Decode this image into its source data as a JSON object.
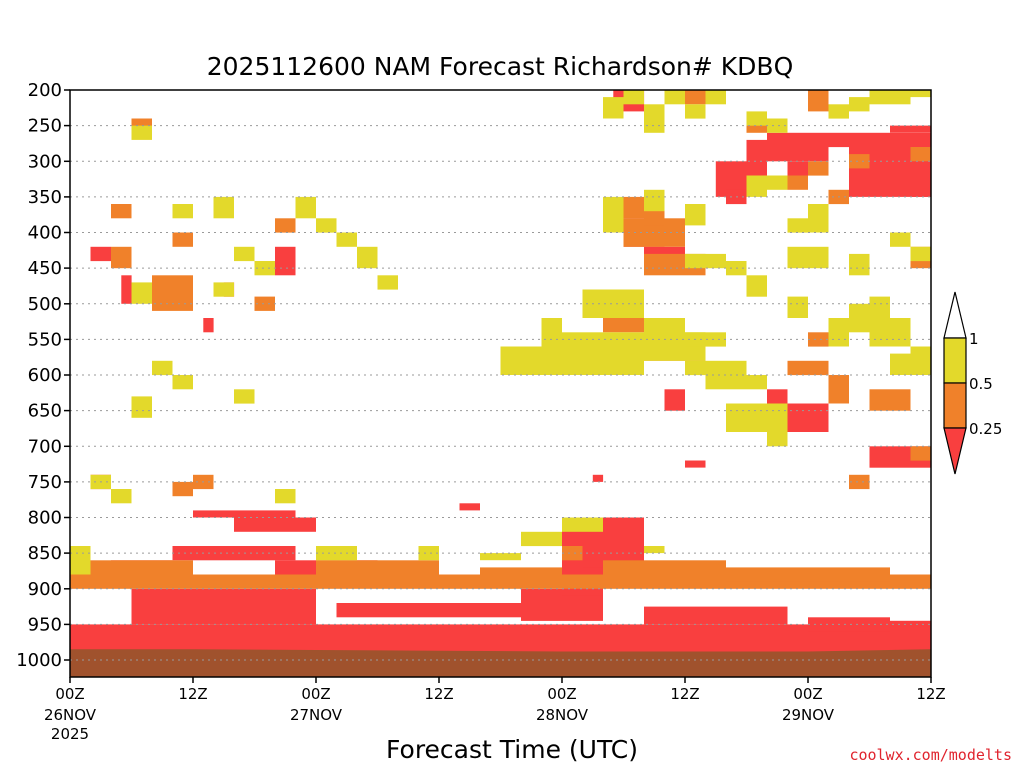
{
  "chart_data": {
    "type": "heatmap",
    "title": "2025112600 NAM Forecast Richardson# KDBQ",
    "xlabel": "Forecast Time (UTC)",
    "ylabel": "",
    "credit": "coolwx.com/modelts",
    "y_axis": {
      "unit": "hPa",
      "range": [
        1000,
        200
      ],
      "ticks": [
        "200",
        "250",
        "300",
        "350",
        "400",
        "450",
        "500",
        "550",
        "600",
        "650",
        "700",
        "750",
        "800",
        "850",
        "900",
        "950",
        "1000"
      ]
    },
    "x_axis": {
      "unit": "forecast hour",
      "range": [
        0,
        84
      ],
      "ticks": [
        {
          "hour": 0,
          "label": "00Z",
          "date": "26NOV",
          "year": "2025"
        },
        {
          "hour": 12,
          "label": "12Z",
          "date": "",
          "year": ""
        },
        {
          "hour": 24,
          "label": "00Z",
          "date": "27NOV",
          "year": ""
        },
        {
          "hour": 36,
          "label": "12Z",
          "date": "",
          "year": ""
        },
        {
          "hour": 48,
          "label": "00Z",
          "date": "28NOV",
          "year": ""
        },
        {
          "hour": 60,
          "label": "12Z",
          "date": "",
          "year": ""
        },
        {
          "hour": 72,
          "label": "00Z",
          "date": "29NOV",
          "year": ""
        },
        {
          "hour": 84,
          "label": "12Z",
          "date": "",
          "year": ""
        }
      ]
    },
    "colorbar": {
      "ticks": [
        "1",
        "0.5",
        "0.25"
      ],
      "classes": [
        {
          "range": ">1",
          "color": "#ffffff"
        },
        {
          "range": "0.5-1",
          "color": "#e3d92b"
        },
        {
          "range": "0.25-0.5",
          "color": "#f0812a"
        },
        {
          "range": "<0.25",
          "color": "#f93f3f"
        }
      ]
    },
    "ground_color": "#a0522d",
    "surface_pressure": [
      [
        0,
        985
      ],
      [
        12,
        985
      ],
      [
        24,
        986
      ],
      [
        36,
        987
      ],
      [
        48,
        988
      ],
      [
        60,
        988
      ],
      [
        72,
        988
      ],
      [
        84,
        985
      ]
    ],
    "regions": [
      {
        "level": "red",
        "cells": [
          [
            0,
            990,
            84,
            950
          ],
          [
            6,
            950,
            24,
            900
          ],
          [
            26,
            940,
            44,
            920
          ],
          [
            44,
            945,
            52,
            900
          ],
          [
            56,
            950,
            70,
            925
          ],
          [
            72,
            960,
            80,
            940
          ],
          [
            80,
            960,
            84,
            945
          ],
          [
            48,
            910,
            52,
            800
          ],
          [
            50,
            870,
            56,
            800
          ]
        ]
      },
      {
        "level": "red",
        "cells": [
          [
            10,
            860,
            22,
            840
          ],
          [
            16,
            820,
            24,
            800
          ],
          [
            12,
            800,
            22,
            790
          ],
          [
            20,
            880,
            30,
            860
          ],
          [
            4,
            870,
            10,
            860
          ],
          [
            2,
            760,
            4,
            740
          ],
          [
            38,
            790,
            40,
            780
          ],
          [
            51,
            750,
            52,
            740
          ],
          [
            63,
            350,
            66,
            300
          ],
          [
            66,
            330,
            68,
            270
          ],
          [
            68,
            300,
            74,
            260
          ],
          [
            74,
            280,
            84,
            260
          ],
          [
            76,
            350,
            84,
            280
          ],
          [
            58,
            650,
            60,
            620
          ],
          [
            68,
            650,
            70,
            620
          ],
          [
            70,
            680,
            74,
            640
          ],
          [
            78,
            730,
            84,
            700
          ],
          [
            80,
            300,
            84,
            280
          ],
          [
            82,
            350,
            84,
            300
          ],
          [
            53,
            230,
            56,
            200
          ],
          [
            54,
            420,
            58,
            380
          ],
          [
            56,
            450,
            60,
            420
          ],
          [
            2,
            440,
            4,
            420
          ],
          [
            5,
            500,
            6,
            460
          ],
          [
            13,
            540,
            14,
            520
          ],
          [
            15,
            490,
            16,
            470
          ],
          [
            20,
            460,
            22,
            420
          ],
          [
            80,
            260,
            84,
            250
          ],
          [
            64,
            360,
            66,
            340
          ],
          [
            70,
            320,
            72,
            300
          ],
          [
            60,
            730,
            62,
            720
          ]
        ]
      },
      {
        "level": "orange",
        "cells": [
          [
            0,
            900,
            84,
            880
          ],
          [
            2,
            880,
            12,
            860
          ],
          [
            24,
            880,
            36,
            860
          ],
          [
            28,
            890,
            36,
            880
          ],
          [
            40,
            880,
            48,
            870
          ],
          [
            48,
            860,
            50,
            840
          ],
          [
            52,
            880,
            64,
            860
          ],
          [
            64,
            890,
            80,
            870
          ],
          [
            4,
            450,
            6,
            420
          ],
          [
            8,
            510,
            12,
            460
          ],
          [
            10,
            420,
            12,
            400
          ],
          [
            6,
            260,
            8,
            240
          ],
          [
            10,
            770,
            12,
            750
          ],
          [
            12,
            760,
            14,
            740
          ],
          [
            18,
            510,
            20,
            490
          ],
          [
            20,
            400,
            22,
            380
          ],
          [
            52,
            540,
            56,
            520
          ],
          [
            56,
            580,
            62,
            560
          ],
          [
            54,
            420,
            60,
            380
          ],
          [
            56,
            460,
            62,
            430
          ],
          [
            62,
            610,
            64,
            590
          ],
          [
            60,
            220,
            62,
            200
          ],
          [
            62,
            210,
            64,
            200
          ],
          [
            54,
            380,
            56,
            350
          ],
          [
            56,
            390,
            58,
            360
          ],
          [
            66,
            260,
            68,
            240
          ],
          [
            70,
            340,
            72,
            320
          ],
          [
            72,
            320,
            74,
            300
          ],
          [
            76,
            310,
            78,
            290
          ],
          [
            70,
            600,
            74,
            580
          ],
          [
            74,
            640,
            76,
            600
          ],
          [
            78,
            650,
            80,
            620
          ],
          [
            80,
            650,
            82,
            620
          ],
          [
            72,
            560,
            74,
            540
          ],
          [
            76,
            760,
            78,
            740
          ],
          [
            82,
            300,
            84,
            280
          ],
          [
            82,
            720,
            84,
            700
          ],
          [
            72,
            230,
            74,
            200
          ],
          [
            4,
            380,
            6,
            360
          ],
          [
            74,
            360,
            76,
            340
          ],
          [
            82,
            450,
            84,
            420
          ]
        ]
      },
      {
        "level": "yellow",
        "cells": [
          [
            0,
            880,
            2,
            840
          ],
          [
            6,
            660,
            8,
            630
          ],
          [
            6,
            270,
            8,
            250
          ],
          [
            8,
            600,
            10,
            580
          ],
          [
            10,
            620,
            12,
            600
          ],
          [
            6,
            500,
            8,
            470
          ],
          [
            10,
            380,
            12,
            360
          ],
          [
            14,
            380,
            16,
            350
          ],
          [
            16,
            440,
            18,
            420
          ],
          [
            18,
            460,
            20,
            440
          ],
          [
            22,
            380,
            24,
            350
          ],
          [
            24,
            400,
            26,
            380
          ],
          [
            26,
            420,
            28,
            400
          ],
          [
            28,
            450,
            30,
            420
          ],
          [
            30,
            480,
            32,
            460
          ],
          [
            46,
            560,
            48,
            520
          ],
          [
            42,
            600,
            56,
            560
          ],
          [
            48,
            580,
            62,
            540
          ],
          [
            50,
            520,
            56,
            480
          ],
          [
            52,
            510,
            54,
            480
          ],
          [
            56,
            560,
            60,
            520
          ],
          [
            60,
            560,
            64,
            540
          ],
          [
            60,
            600,
            66,
            580
          ],
          [
            62,
            620,
            68,
            600
          ],
          [
            64,
            680,
            70,
            640
          ],
          [
            68,
            700,
            70,
            680
          ],
          [
            70,
            520,
            72,
            490
          ],
          [
            52,
            240,
            54,
            210
          ],
          [
            54,
            220,
            56,
            200
          ],
          [
            56,
            260,
            58,
            220
          ],
          [
            58,
            220,
            60,
            200
          ],
          [
            60,
            240,
            62,
            220
          ],
          [
            62,
            220,
            64,
            200
          ],
          [
            52,
            400,
            54,
            350
          ],
          [
            56,
            370,
            58,
            340
          ],
          [
            60,
            390,
            62,
            360
          ],
          [
            60,
            450,
            64,
            430
          ],
          [
            64,
            460,
            66,
            440
          ],
          [
            66,
            490,
            68,
            460
          ],
          [
            66,
            350,
            68,
            320
          ],
          [
            68,
            340,
            70,
            320
          ],
          [
            70,
            400,
            72,
            380
          ],
          [
            72,
            400,
            74,
            360
          ],
          [
            70,
            450,
            74,
            420
          ],
          [
            74,
            560,
            76,
            520
          ],
          [
            76,
            540,
            78,
            500
          ],
          [
            78,
            560,
            80,
            520
          ],
          [
            80,
            600,
            82,
            570
          ],
          [
            82,
            600,
            84,
            560
          ],
          [
            80,
            420,
            82,
            400
          ],
          [
            82,
            440,
            84,
            420
          ],
          [
            76,
            460,
            78,
            430
          ],
          [
            78,
            520,
            80,
            490
          ],
          [
            80,
            560,
            82,
            520
          ],
          [
            74,
            240,
            76,
            220
          ],
          [
            76,
            230,
            78,
            210
          ],
          [
            78,
            220,
            82,
            200
          ],
          [
            82,
            210,
            84,
            200
          ],
          [
            66,
            250,
            68,
            230
          ],
          [
            68,
            260,
            70,
            240
          ],
          [
            16,
            640,
            18,
            620
          ],
          [
            14,
            490,
            16,
            470
          ],
          [
            40,
            860,
            44,
            850
          ],
          [
            56,
            850,
            58,
            840
          ],
          [
            2,
            760,
            4,
            740
          ],
          [
            4,
            780,
            6,
            760
          ],
          [
            20,
            780,
            22,
            760
          ],
          [
            24,
            860,
            28,
            840
          ],
          [
            34,
            860,
            36,
            840
          ],
          [
            44,
            840,
            48,
            820
          ],
          [
            48,
            820,
            52,
            800
          ]
        ]
      }
    ]
  }
}
